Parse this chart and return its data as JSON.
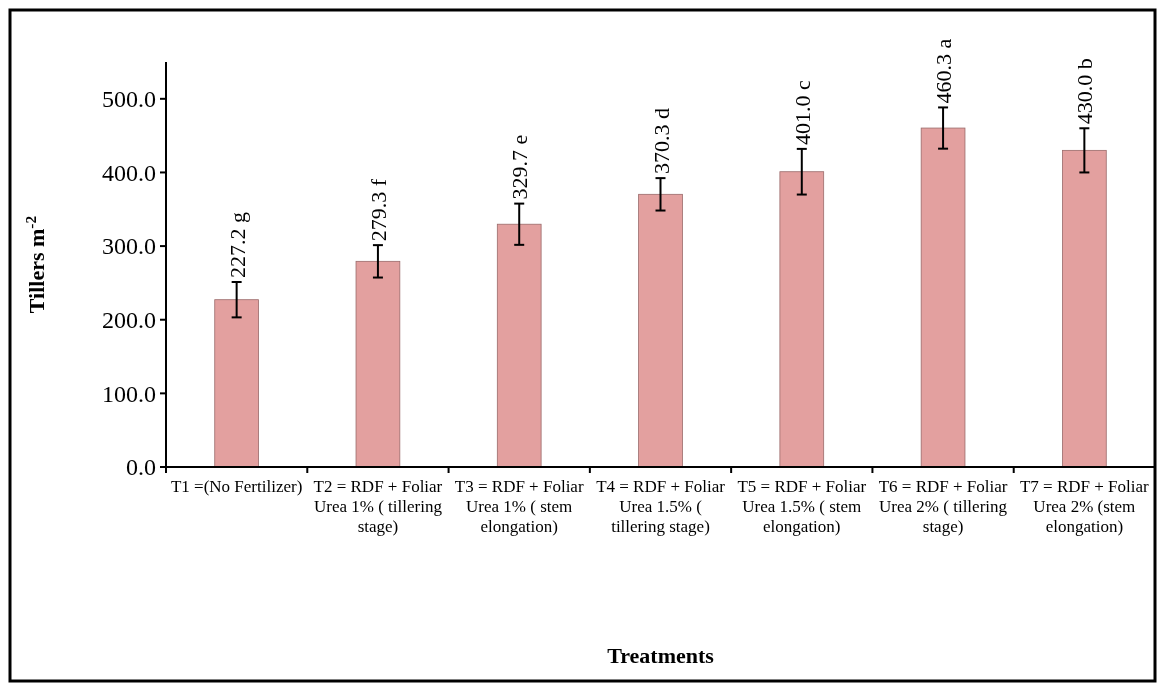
{
  "chart_data": {
    "type": "bar",
    "xlabel": "Treatments",
    "ylabel": "Tillers m$^{-2}$",
    "categories": [
      "T1 =(No Fertilizer)",
      "T2 = RDF + Foliar Urea 1% ( tillering stage)",
      "T3 = RDF + Foliar Urea 1% ( stem elongation)",
      "T4 = RDF + Foliar Urea 1.5% ( tillering stage)",
      "T5 = RDF + Foliar Urea 1.5% ( stem elongation)",
      "T6 = RDF + Foliar Urea 2% ( tillering stage)",
      "T7 = RDF + Foliar Urea 2% (stem elongation)"
    ],
    "values": [
      227.2,
      279.3,
      329.7,
      370.3,
      401.0,
      460.3,
      430.0
    ],
    "errors": [
      24,
      22,
      28,
      22,
      31,
      28,
      30
    ],
    "value_labels": [
      "227.2 g",
      "279.3 f",
      "329.7 e",
      "370.3 d",
      "401.0 c",
      "460.3 a",
      "430.0 b"
    ],
    "color": "#e3a09f",
    "ylim": [
      0,
      550
    ],
    "yticks": [
      {
        "value": 0,
        "label": "0.0"
      },
      {
        "value": 100,
        "label": "100.0"
      },
      {
        "value": 200,
        "label": "200.0"
      },
      {
        "value": 300,
        "label": "300.0"
      },
      {
        "value": 400,
        "label": "400.0"
      },
      {
        "value": 500,
        "label": "500.0"
      }
    ],
    "grid": false
  }
}
